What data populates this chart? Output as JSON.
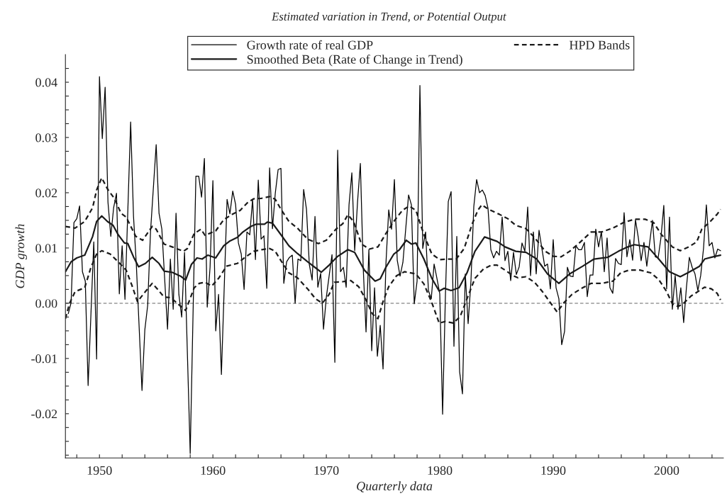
{
  "chart_data": {
    "type": "line",
    "title": "Estimated variation in Trend, or Potential Output",
    "xlabel": "Quarterly data",
    "ylabel": "GDP growth",
    "xlim": [
      1947,
      2005
    ],
    "ylim": [
      -0.028,
      0.045
    ],
    "xticks": [
      {
        "value": 1948,
        "label": null
      },
      1950,
      {
        "value": 1952,
        "label": null
      },
      {
        "value": 1954,
        "label": null
      },
      {
        "value": 1956,
        "label": null
      },
      {
        "value": 1958,
        "label": null
      },
      1960,
      {
        "value": 1962,
        "label": null
      },
      {
        "value": 1964,
        "label": null
      },
      {
        "value": 1966,
        "label": null
      },
      {
        "value": 1968,
        "label": null
      },
      1970,
      {
        "value": 1972,
        "label": null
      },
      {
        "value": 1974,
        "label": null
      },
      {
        "value": 1976,
        "label": null
      },
      {
        "value": 1978,
        "label": null
      },
      1980,
      {
        "value": 1982,
        "label": null
      },
      {
        "value": 1984,
        "label": null
      },
      {
        "value": 1986,
        "label": null
      },
      {
        "value": 1988,
        "label": null
      },
      1990,
      {
        "value": 1992,
        "label": null
      },
      {
        "value": 1994,
        "label": null
      },
      {
        "value": 1996,
        "label": null
      },
      {
        "value": 1998,
        "label": null
      },
      2000,
      {
        "value": 2002,
        "label": null
      },
      {
        "value": 2004,
        "label": null
      }
    ],
    "yticks": [
      {
        "value": -0.0275,
        "label": null
      },
      {
        "value": -0.025,
        "label": null
      },
      {
        "value": -0.0225,
        "label": null
      },
      {
        "value": -0.02,
        "label": "-0.02"
      },
      {
        "value": -0.0175,
        "label": null
      },
      {
        "value": -0.015,
        "label": null
      },
      {
        "value": -0.0125,
        "label": null
      },
      {
        "value": -0.01,
        "label": "-0.01"
      },
      {
        "value": -0.0075,
        "label": null
      },
      {
        "value": -0.005,
        "label": null
      },
      {
        "value": -0.0025,
        "label": null
      },
      {
        "value": 0,
        "label": "0.00"
      },
      {
        "value": 0.0025,
        "label": null
      },
      {
        "value": 0.005,
        "label": null
      },
      {
        "value": 0.0075,
        "label": null
      },
      {
        "value": 0.01,
        "label": "0.01"
      },
      {
        "value": 0.0125,
        "label": null
      },
      {
        "value": 0.015,
        "label": null
      },
      {
        "value": 0.0175,
        "label": null
      },
      {
        "value": 0.02,
        "label": "0.02"
      },
      {
        "value": 0.0225,
        "label": null
      },
      {
        "value": 0.025,
        "label": null
      },
      {
        "value": 0.0275,
        "label": null
      },
      {
        "value": 0.03,
        "label": "0.03"
      },
      {
        "value": 0.0325,
        "label": null
      },
      {
        "value": 0.035,
        "label": null
      },
      {
        "value": 0.0375,
        "label": null
      },
      {
        "value": 0.04,
        "label": "0.04"
      },
      {
        "value": 0.0425,
        "label": null
      }
    ],
    "grid": false,
    "legend": "top",
    "marker": "none",
    "ref_lines": [
      {
        "axis": "y",
        "value": 0,
        "color": "#999999",
        "line_style": "dashed"
      }
    ],
    "series": [
      {
        "name": "Growth rate of real GDP",
        "color": "#000000",
        "line_style": "solid",
        "x": [
          1947.25,
          1947.5,
          1947.75,
          1948.0,
          1948.25,
          1948.5,
          1948.75,
          1949.0,
          1949.25,
          1949.5,
          1949.75,
          1950.0,
          1950.25,
          1950.5,
          1950.75,
          1951.0,
          1951.25,
          1951.5,
          1951.75,
          1952.0,
          1952.25,
          1952.75,
          1953.0,
          1953.25,
          1953.75,
          1954.0,
          1954.25,
          1954.5,
          1955.0,
          1955.25,
          1955.5,
          1956.0,
          1956.25,
          1956.5,
          1956.75,
          1957.0,
          1957.25,
          1957.5,
          1958.0,
          1958.25,
          1958.5,
          1958.75,
          1959.0,
          1959.25,
          1959.5,
          1959.75,
          1960.0,
          1960.25,
          1960.5,
          1960.75,
          1961.25,
          1961.5,
          1961.75,
          1962.0,
          1962.25,
          1962.5,
          1962.75,
          1963.0,
          1963.25,
          1963.5,
          1963.75,
          1964.0,
          1964.25,
          1964.5,
          1964.75,
          1965.0,
          1965.25,
          1965.5,
          1965.75,
          1966.0,
          1966.25,
          1966.5,
          1966.75,
          1967.0,
          1967.25,
          1967.5,
          1967.75,
          1968.0,
          1968.25,
          1968.5,
          1968.75,
          1969.0,
          1969.25,
          1969.5,
          1969.75,
          1970.0,
          1970.25,
          1970.5,
          1970.75,
          1971.0,
          1971.25,
          1971.5,
          1971.75,
          1972.0,
          1972.25,
          1972.5,
          1972.75,
          1973.0,
          1973.25,
          1973.5,
          1973.75,
          1974.0,
          1974.25,
          1974.5,
          1974.75,
          1975.0,
          1975.25,
          1975.5,
          1975.75,
          1976.0,
          1976.25,
          1976.5,
          1976.75,
          1977.25,
          1977.5,
          1977.75,
          1978.0,
          1978.25,
          1978.5,
          1978.75,
          1979.0,
          1979.25,
          1979.5,
          1979.75,
          1980.0,
          1980.25,
          1980.5,
          1980.75,
          1981.0,
          1981.25,
          1981.5,
          1981.75,
          1982.0,
          1982.25,
          1982.5,
          1982.75,
          1983.0,
          1983.25,
          1983.5,
          1983.75,
          1984.0,
          1984.25,
          1984.5,
          1984.75,
          1985.0,
          1985.25,
          1985.5,
          1985.75,
          1986.0,
          1986.25,
          1986.5,
          1986.75,
          1987.0,
          1987.25,
          1987.5,
          1987.75,
          1988.0,
          1988.25,
          1988.5,
          1988.75,
          1989.0,
          1989.25,
          1989.5,
          1989.75,
          1990.0,
          1990.25,
          1990.5,
          1990.75,
          1991.0,
          1991.25,
          1991.5,
          1991.75,
          1992.0,
          1992.25,
          1992.5,
          1992.75,
          1993.0,
          1993.25,
          1993.5,
          1993.75,
          1994.0,
          1994.25,
          1994.5,
          1994.75,
          1995.0,
          1995.25,
          1995.5,
          1995.75,
          1996.0,
          1996.25,
          1996.5,
          1996.75,
          1997.0,
          1997.25,
          1997.5,
          1997.75,
          1998.0,
          1998.25,
          1998.5,
          1998.75,
          1999.0,
          1999.25,
          1999.5,
          1999.75,
          2000.0,
          2000.25,
          2000.5,
          2000.75,
          2001.0,
          2001.25,
          2001.5,
          2001.75,
          2002.0,
          2002.25,
          2002.5,
          2002.75,
          2003.0,
          2003.25,
          2003.5,
          2003.75,
          2004.0,
          2004.25,
          2004.5,
          2004.75
        ],
        "values": [
          -0.0019,
          0.0001,
          0.0146,
          0.0153,
          0.0176,
          0.0057,
          0.004,
          -0.0149,
          -0.0019,
          0.0111,
          -0.0101,
          0.041,
          0.0298,
          0.0391,
          0.0183,
          0.0121,
          0.0173,
          0.0199,
          0.0017,
          0.0104,
          0.0007,
          0.0328,
          0.0158,
          0.007,
          -0.0158,
          -0.0048,
          -0.0004,
          0.0129,
          0.0287,
          0.0163,
          0.0134,
          -0.0047,
          0.008,
          -0.0011,
          0.0163,
          0.0016,
          -0.0025,
          0.0092,
          -0.0272,
          -0.0019,
          0.023,
          0.023,
          0.0192,
          0.0262,
          -0.0007,
          0.0065,
          0.0222,
          -0.005,
          0.0016,
          -0.0129,
          0.0188,
          0.0162,
          0.0203,
          0.0179,
          0.0109,
          0.0089,
          0.0025,
          0.0129,
          0.0124,
          0.0188,
          0.0079,
          0.0223,
          0.0116,
          0.0122,
          0.0027,
          0.0245,
          0.0135,
          0.0199,
          0.0242,
          0.0244,
          0.0036,
          0.0075,
          0.0083,
          0.0087,
          0.0,
          0.008,
          0.0077,
          0.0206,
          0.017,
          0.007,
          0.0042,
          0.0157,
          0.0029,
          0.0054,
          -0.0047,
          0.0011,
          0.005,
          0.0088,
          -0.0107,
          0.0277,
          0.0057,
          0.0065,
          0.0029,
          0.0178,
          0.0236,
          0.0095,
          0.0183,
          0.0253,
          0.0065,
          -0.0052,
          0.0097,
          -0.0086,
          0.0028,
          -0.0096,
          -0.004,
          -0.0119,
          0.007,
          0.0169,
          0.0134,
          0.0224,
          0.0078,
          0.0049,
          0.0074,
          0.0196,
          0.0178,
          -0.0001,
          0.004,
          0.0394,
          0.0099,
          0.0129,
          0.0023,
          0.0008,
          0.0071,
          0.0045,
          0.0017,
          -0.0201,
          0.0016,
          0.0184,
          0.0202,
          -0.0078,
          0.0121,
          -0.0124,
          -0.0164,
          0.0053,
          -0.0037,
          0.0041,
          0.0175,
          0.0224,
          0.02,
          0.0205,
          0.0195,
          0.0172,
          0.0097,
          0.0082,
          0.0094,
          0.0087,
          0.0156,
          0.0077,
          0.0094,
          0.0041,
          0.0092,
          0.0052,
          0.0066,
          0.0109,
          0.0094,
          0.0174,
          0.005,
          0.0129,
          0.0053,
          0.0132,
          0.0099,
          0.0067,
          0.0071,
          0.0026,
          0.0115,
          0.0028,
          0.0008,
          -0.0075,
          -0.0051,
          0.0065,
          0.0049,
          0.0048,
          0.0104,
          0.0097,
          0.0097,
          0.011,
          0.0012,
          0.0051,
          0.0051,
          0.0134,
          0.0102,
          0.013,
          0.0057,
          0.0118,
          0.0028,
          0.0018,
          0.0081,
          0.0072,
          0.007,
          0.0164,
          0.0084,
          0.0115,
          0.0078,
          0.0151,
          0.0119,
          0.0077,
          0.011,
          0.0067,
          0.0109,
          0.015,
          0.0084,
          0.0082,
          0.0119,
          0.0177,
          0.0026,
          0.0156,
          -0.0011,
          0.005,
          -0.0011,
          0.0028,
          -0.0035,
          0.003,
          0.0083,
          0.0065,
          0.0053,
          0.0023,
          0.005,
          0.0099,
          0.0178,
          0.0104,
          0.011,
          0.0082,
          0.0098,
          0.0095
        ]
      },
      {
        "name": "Smoothed Beta (Rate of Change in Trend)",
        "color": "#1a1a1a",
        "line_style": "solid",
        "x": [
          1947.0,
          1947.5,
          1948.0,
          1948.7,
          1949.4,
          1949.75,
          1950.2,
          1950.7,
          1951.2,
          1951.65,
          1952.2,
          1952.5,
          1953.0,
          1953.45,
          1954.05,
          1954.65,
          1955.25,
          1955.7,
          1956.4,
          1957.15,
          1957.6,
          1958.1,
          1958.6,
          1959.05,
          1959.55,
          1960.25,
          1960.95,
          1961.45,
          1962.15,
          1962.65,
          1963.35,
          1963.8,
          1964.55,
          1964.8,
          1965.25,
          1966.0,
          1966.7,
          1967.45,
          1968.35,
          1969.05,
          1969.55,
          1970.25,
          1970.95,
          1971.9,
          1972.5,
          1973.35,
          1974.3,
          1974.75,
          1975.25,
          1975.95,
          1976.45,
          1977.05,
          1977.5,
          1977.9,
          1978.6,
          1979.3,
          1979.95,
          1980.4,
          1981.0,
          1981.7,
          1982.4,
          1983.1,
          1983.95,
          1985.05,
          1985.75,
          1986.7,
          1987.6,
          1988.55,
          1989.5,
          1990.5,
          1991.45,
          1992.6,
          1993.6,
          1994.8,
          1995.75,
          1996.45,
          1997.15,
          1998.35,
          1999.3,
          2000.25,
          2001.2,
          2001.95,
          2002.9,
          2003.35,
          2004.1,
          2004.75
        ],
        "values": [
          0.0057,
          0.0075,
          0.0082,
          0.0087,
          0.0121,
          0.0148,
          0.0158,
          0.0148,
          0.0141,
          0.0124,
          0.0109,
          0.0108,
          0.0084,
          0.0066,
          0.0072,
          0.0083,
          0.0072,
          0.0058,
          0.0056,
          0.0049,
          0.0042,
          0.007,
          0.0082,
          0.008,
          0.0087,
          0.0082,
          0.0104,
          0.0112,
          0.0119,
          0.0129,
          0.0139,
          0.0143,
          0.0143,
          0.0147,
          0.0145,
          0.0124,
          0.0104,
          0.009,
          0.0075,
          0.0064,
          0.0056,
          0.0069,
          0.0084,
          0.0097,
          0.0092,
          0.006,
          0.004,
          0.0044,
          0.0065,
          0.0089,
          0.0097,
          0.0114,
          0.0107,
          0.0109,
          0.008,
          0.0045,
          0.0022,
          0.0027,
          0.0023,
          0.0028,
          0.0055,
          0.0094,
          0.012,
          0.0112,
          0.0102,
          0.0094,
          0.0092,
          0.008,
          0.0053,
          0.0036,
          0.0053,
          0.0067,
          0.008,
          0.0083,
          0.0094,
          0.0101,
          0.0106,
          0.0102,
          0.008,
          0.0057,
          0.0048,
          0.0056,
          0.0067,
          0.008,
          0.0084,
          0.0087
        ]
      },
      {
        "name": "HPD Bands",
        "color": "#1a1a1a",
        "line_style": "dashed",
        "x": [
          1947.0,
          1947.85,
          1948.7,
          1949.4,
          1949.75,
          1950.2,
          1950.7,
          1951.3,
          1951.9,
          1952.35,
          1953.2,
          1953.8,
          1954.65,
          1955.0,
          1955.7,
          1956.4,
          1957.4,
          1957.75,
          1958.35,
          1958.95,
          1959.3,
          1960.25,
          1960.95,
          1961.7,
          1962.4,
          1963.1,
          1963.6,
          1964.3,
          1965.0,
          1965.5,
          1966.0,
          1966.7,
          1967.45,
          1968.35,
          1969.3,
          1970.0,
          1970.85,
          1971.45,
          1971.9,
          1972.4,
          1973.1,
          1973.8,
          1974.55,
          1975.25,
          1975.95,
          1976.7,
          1977.3,
          1977.9,
          1978.6,
          1979.3,
          1980.0,
          1980.7,
          1981.45,
          1982.15,
          1982.85,
          1983.35,
          1983.7,
          1984.3,
          1985.25,
          1986.0,
          1986.7,
          1987.6,
          1988.35,
          1989.3,
          1990.0,
          1990.7,
          1991.45,
          1992.4,
          1993.35,
          1994.3,
          1995.25,
          1996.2,
          1997.15,
          1998.1,
          1998.85,
          1999.55,
          2000.5,
          2001.2,
          2001.95,
          2002.65,
          2003.1,
          2003.85,
          2004.45,
          2004.75
        ],
        "values": [
          0.0139,
          0.0136,
          0.0148,
          0.0173,
          0.0205,
          0.0227,
          0.0207,
          0.019,
          0.0163,
          0.0156,
          0.0121,
          0.0114,
          0.0139,
          0.0134,
          0.0107,
          0.0102,
          0.0094,
          0.0099,
          0.0126,
          0.0134,
          0.0123,
          0.0131,
          0.0151,
          0.0161,
          0.0168,
          0.0183,
          0.0189,
          0.019,
          0.0193,
          0.0188,
          0.017,
          0.0148,
          0.0136,
          0.0116,
          0.0108,
          0.0114,
          0.0134,
          0.0144,
          0.016,
          0.0148,
          0.0107,
          0.0098,
          0.0102,
          0.0126,
          0.0148,
          0.0168,
          0.0176,
          0.0168,
          0.0124,
          0.0089,
          0.0079,
          0.008,
          0.008,
          0.0099,
          0.0143,
          0.0168,
          0.0178,
          0.017,
          0.0161,
          0.0153,
          0.0141,
          0.0135,
          0.0119,
          0.0094,
          0.0085,
          0.0084,
          0.0094,
          0.0111,
          0.0129,
          0.0129,
          0.0136,
          0.0146,
          0.0152,
          0.0152,
          0.0146,
          0.0124,
          0.0102,
          0.0095,
          0.0102,
          0.0111,
          0.0134,
          0.0148,
          0.0161,
          0.017
        ]
      },
      {
        "color": "#1a1a1a",
        "line_style": "dashed",
        "x": [
          1947.0,
          1947.35,
          1947.85,
          1948.7,
          1949.25,
          1949.75,
          1950.2,
          1950.95,
          1951.65,
          1952.35,
          1952.85,
          1953.35,
          1954.05,
          1954.65,
          1955.1,
          1955.7,
          1956.3,
          1956.9,
          1957.6,
          1958.35,
          1958.8,
          1959.3,
          1959.9,
          1960.5,
          1961.2,
          1962.15,
          1962.9,
          1963.6,
          1964.3,
          1965.0,
          1965.5,
          1966.0,
          1966.7,
          1967.45,
          1968.35,
          1969.05,
          1969.65,
          1970.25,
          1970.7,
          1971.45,
          1972.15,
          1972.85,
          1973.45,
          1974.05,
          1974.55,
          1975.0,
          1975.5,
          1976.2,
          1976.9,
          1977.9,
          1978.6,
          1979.3,
          1979.95,
          1980.5,
          1981.2,
          1981.8,
          1982.4,
          1983.1,
          1983.85,
          1984.55,
          1985.05,
          1985.75,
          1986.45,
          1986.9,
          1987.6,
          1988.35,
          1989.05,
          1989.75,
          1990.35,
          1990.95,
          1991.65,
          1992.6,
          1993.35,
          1994.3,
          1995.25,
          1995.95,
          1996.7,
          1997.65,
          1998.6,
          1999.3,
          2000.0,
          2000.5,
          2001.0,
          2001.45,
          2002.15,
          2002.9,
          2003.35,
          2003.95,
          2004.45,
          2004.75
        ],
        "values": [
          -0.0028,
          -0.0001,
          0.0021,
          0.0028,
          0.0065,
          0.0089,
          0.0095,
          0.0089,
          0.0075,
          0.006,
          0.0033,
          0.0003,
          0.0021,
          0.0036,
          0.0026,
          0.0011,
          0.001,
          -0.0001,
          -0.0013,
          0.0028,
          0.0036,
          0.0038,
          0.0031,
          0.0045,
          0.0067,
          0.0072,
          0.0084,
          0.0094,
          0.0097,
          0.0099,
          0.0094,
          0.0077,
          0.0055,
          0.0046,
          0.0026,
          0.0008,
          0.0,
          0.0016,
          0.0038,
          0.0039,
          0.0041,
          0.003,
          0.0008,
          -0.0019,
          -0.0028,
          0.0003,
          0.003,
          0.005,
          0.0057,
          0.0053,
          0.0035,
          0.0001,
          -0.0036,
          -0.0033,
          -0.0036,
          -0.0024,
          0.0008,
          0.0045,
          0.0062,
          0.0069,
          0.0069,
          0.006,
          0.005,
          0.0046,
          0.0048,
          0.0038,
          0.0021,
          0.0001,
          -0.0016,
          0.0001,
          0.0016,
          0.0028,
          0.0036,
          0.0036,
          0.004,
          0.0055,
          0.006,
          0.006,
          0.0055,
          0.0043,
          0.0021,
          -0.0001,
          -0.0006,
          -0.0001,
          0.0013,
          0.0023,
          0.0029,
          0.0026,
          0.0018,
          0.0006
        ]
      }
    ]
  }
}
